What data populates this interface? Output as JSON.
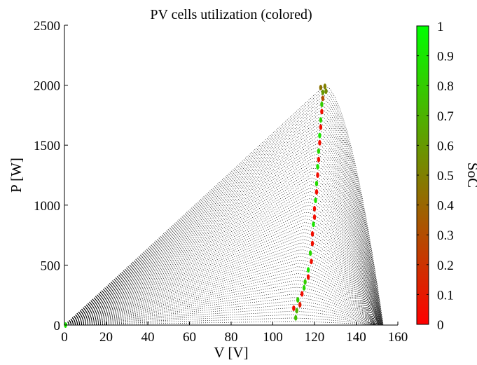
{
  "chart_data": {
    "type": "scatter",
    "title": "PV cells utilization (colored)",
    "xlabel": "V [V]",
    "ylabel": "P [W]",
    "xlim": [
      0,
      160
    ],
    "ylim": [
      0,
      2500
    ],
    "xticks": [
      0,
      20,
      40,
      60,
      80,
      100,
      120,
      140,
      160
    ],
    "yticks": [
      0,
      500,
      1000,
      1500,
      2000,
      2500
    ],
    "grid": false,
    "background_family": {
      "description_type": "PV curves",
      "color": "#000000",
      "curve_count": 70,
      "p_max": [
        30,
        2000
      ],
      "v_mpp": [
        108,
        125
      ],
      "v_oc": [
        148,
        153
      ]
    },
    "operating_points": [
      {
        "v": 111,
        "p": 60,
        "soc": 0.75
      },
      {
        "v": 111.5,
        "p": 120,
        "soc": 0.7
      },
      {
        "v": 110,
        "p": 140,
        "soc": 0.05
      },
      {
        "v": 113,
        "p": 170,
        "soc": 0.1
      },
      {
        "v": 112,
        "p": 210,
        "soc": 0.8
      },
      {
        "v": 114,
        "p": 260,
        "soc": 0.05
      },
      {
        "v": 115,
        "p": 310,
        "soc": 0.85
      },
      {
        "v": 115.5,
        "p": 360,
        "soc": 0.8
      },
      {
        "v": 117,
        "p": 400,
        "soc": 0.05
      },
      {
        "v": 117,
        "p": 460,
        "soc": 0.9
      },
      {
        "v": 118.5,
        "p": 530,
        "soc": 0.05
      },
      {
        "v": 118,
        "p": 600,
        "soc": 0.85
      },
      {
        "v": 119,
        "p": 680,
        "soc": 0.05
      },
      {
        "v": 119,
        "p": 760,
        "soc": 0.05
      },
      {
        "v": 119.5,
        "p": 840,
        "soc": 0.9
      },
      {
        "v": 120,
        "p": 900,
        "soc": 0.05
      },
      {
        "v": 120,
        "p": 970,
        "soc": 0.05
      },
      {
        "v": 120.5,
        "p": 1040,
        "soc": 0.9
      },
      {
        "v": 121,
        "p": 1110,
        "soc": 0.05
      },
      {
        "v": 121,
        "p": 1180,
        "soc": 0.85
      },
      {
        "v": 121.5,
        "p": 1250,
        "soc": 0.05
      },
      {
        "v": 121.5,
        "p": 1320,
        "soc": 0.9
      },
      {
        "v": 122,
        "p": 1380,
        "soc": 0.05
      },
      {
        "v": 122,
        "p": 1450,
        "soc": 0.85
      },
      {
        "v": 122.5,
        "p": 1520,
        "soc": 0.05
      },
      {
        "v": 122.5,
        "p": 1580,
        "soc": 0.9
      },
      {
        "v": 123,
        "p": 1650,
        "soc": 0.05
      },
      {
        "v": 123,
        "p": 1710,
        "soc": 0.85
      },
      {
        "v": 123.5,
        "p": 1780,
        "soc": 0.05
      },
      {
        "v": 123.5,
        "p": 1840,
        "soc": 0.8
      },
      {
        "v": 124,
        "p": 1890,
        "soc": 0.3
      },
      {
        "v": 124,
        "p": 1940,
        "soc": 0.6
      },
      {
        "v": 123,
        "p": 1980,
        "soc": 0.45
      },
      {
        "v": 125,
        "p": 1990,
        "soc": 0.5
      },
      {
        "v": 125.5,
        "p": 1950,
        "soc": 0.55
      },
      {
        "v": 0.5,
        "p": 0,
        "soc": 0.9
      }
    ],
    "colorbar": {
      "label": "SoC",
      "min": 0,
      "max": 1,
      "ticks": [
        0,
        0.1,
        0.2,
        0.3,
        0.4,
        0.5,
        0.6,
        0.7,
        0.8,
        0.9,
        1
      ],
      "tick_labels": [
        "0",
        "0.1",
        "0.2",
        "0.3",
        "0.4",
        "0.5",
        "0.6",
        "0.7",
        "0.8",
        "0.9",
        "1"
      ],
      "color_low": "#ff0000",
      "color_high": "#00ff00"
    }
  }
}
